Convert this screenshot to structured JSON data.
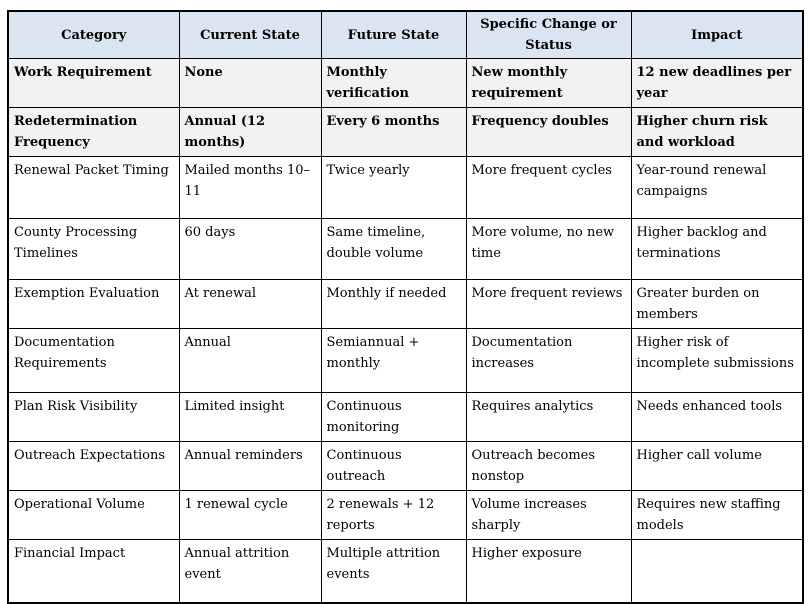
{
  "colors": {
    "header_bg": "#DBE5F1",
    "shaded_row_bg": "#F2F2F2",
    "border": "#000000",
    "text": "#000000",
    "page_bg": "#FFFFFF"
  },
  "table": {
    "columns": [
      {
        "label": "Category"
      },
      {
        "label": "Current State"
      },
      {
        "label": "Future State"
      },
      {
        "label": "Specific Change or Status"
      },
      {
        "label": "Impact"
      }
    ],
    "rows": [
      {
        "style": "shaded-bold",
        "cells": [
          "Work Requirement",
          "None",
          "Monthly verification",
          "New monthly requirement",
          "12 new deadlines per year"
        ]
      },
      {
        "style": "shaded-bold",
        "cells": [
          "Redetermination Frequency",
          "Annual (12 months)",
          "Every 6 months",
          "Frequency doubles",
          "Higher churn risk and workload"
        ]
      },
      {
        "style": "normal",
        "cells": [
          "Renewal Packet Timing",
          "Mailed months 10–11",
          "Twice yearly",
          "More frequent cycles",
          "Year-round renewal campaigns"
        ]
      },
      {
        "style": "normal",
        "cells": [
          "County Processing Timelines",
          "60 days",
          "Same timeline, double volume",
          "More volume, no new time",
          "Higher backlog and terminations"
        ]
      },
      {
        "style": "normal",
        "cells": [
          "Exemption Evaluation",
          "At renewal",
          "Monthly if needed",
          "More frequent reviews",
          "Greater burden on members"
        ]
      },
      {
        "style": "normal",
        "cells": [
          "Documentation Requirements",
          "Annual",
          "Semiannual + monthly",
          "Documentation increases",
          "Higher risk of incomplete submissions"
        ]
      },
      {
        "style": "normal",
        "cells": [
          "Plan Risk Visibility",
          "Limited insight",
          "Continuous monitoring",
          "Requires analytics",
          "Needs enhanced tools"
        ]
      },
      {
        "style": "normal",
        "cells": [
          "Outreach Expectations",
          "Annual reminders",
          "Continuous outreach",
          "Outreach becomes nonstop",
          "Higher call volume"
        ]
      },
      {
        "style": "normal",
        "cells": [
          "Operational Volume",
          "1 renewal cycle",
          "2 renewals + 12 reports",
          "Volume increases sharply",
          "Requires new staffing models"
        ]
      },
      {
        "style": "normal",
        "cells": [
          "Financial Impact",
          "Annual attrition event",
          "Multiple attrition events",
          "Higher exposure",
          ""
        ]
      }
    ]
  }
}
